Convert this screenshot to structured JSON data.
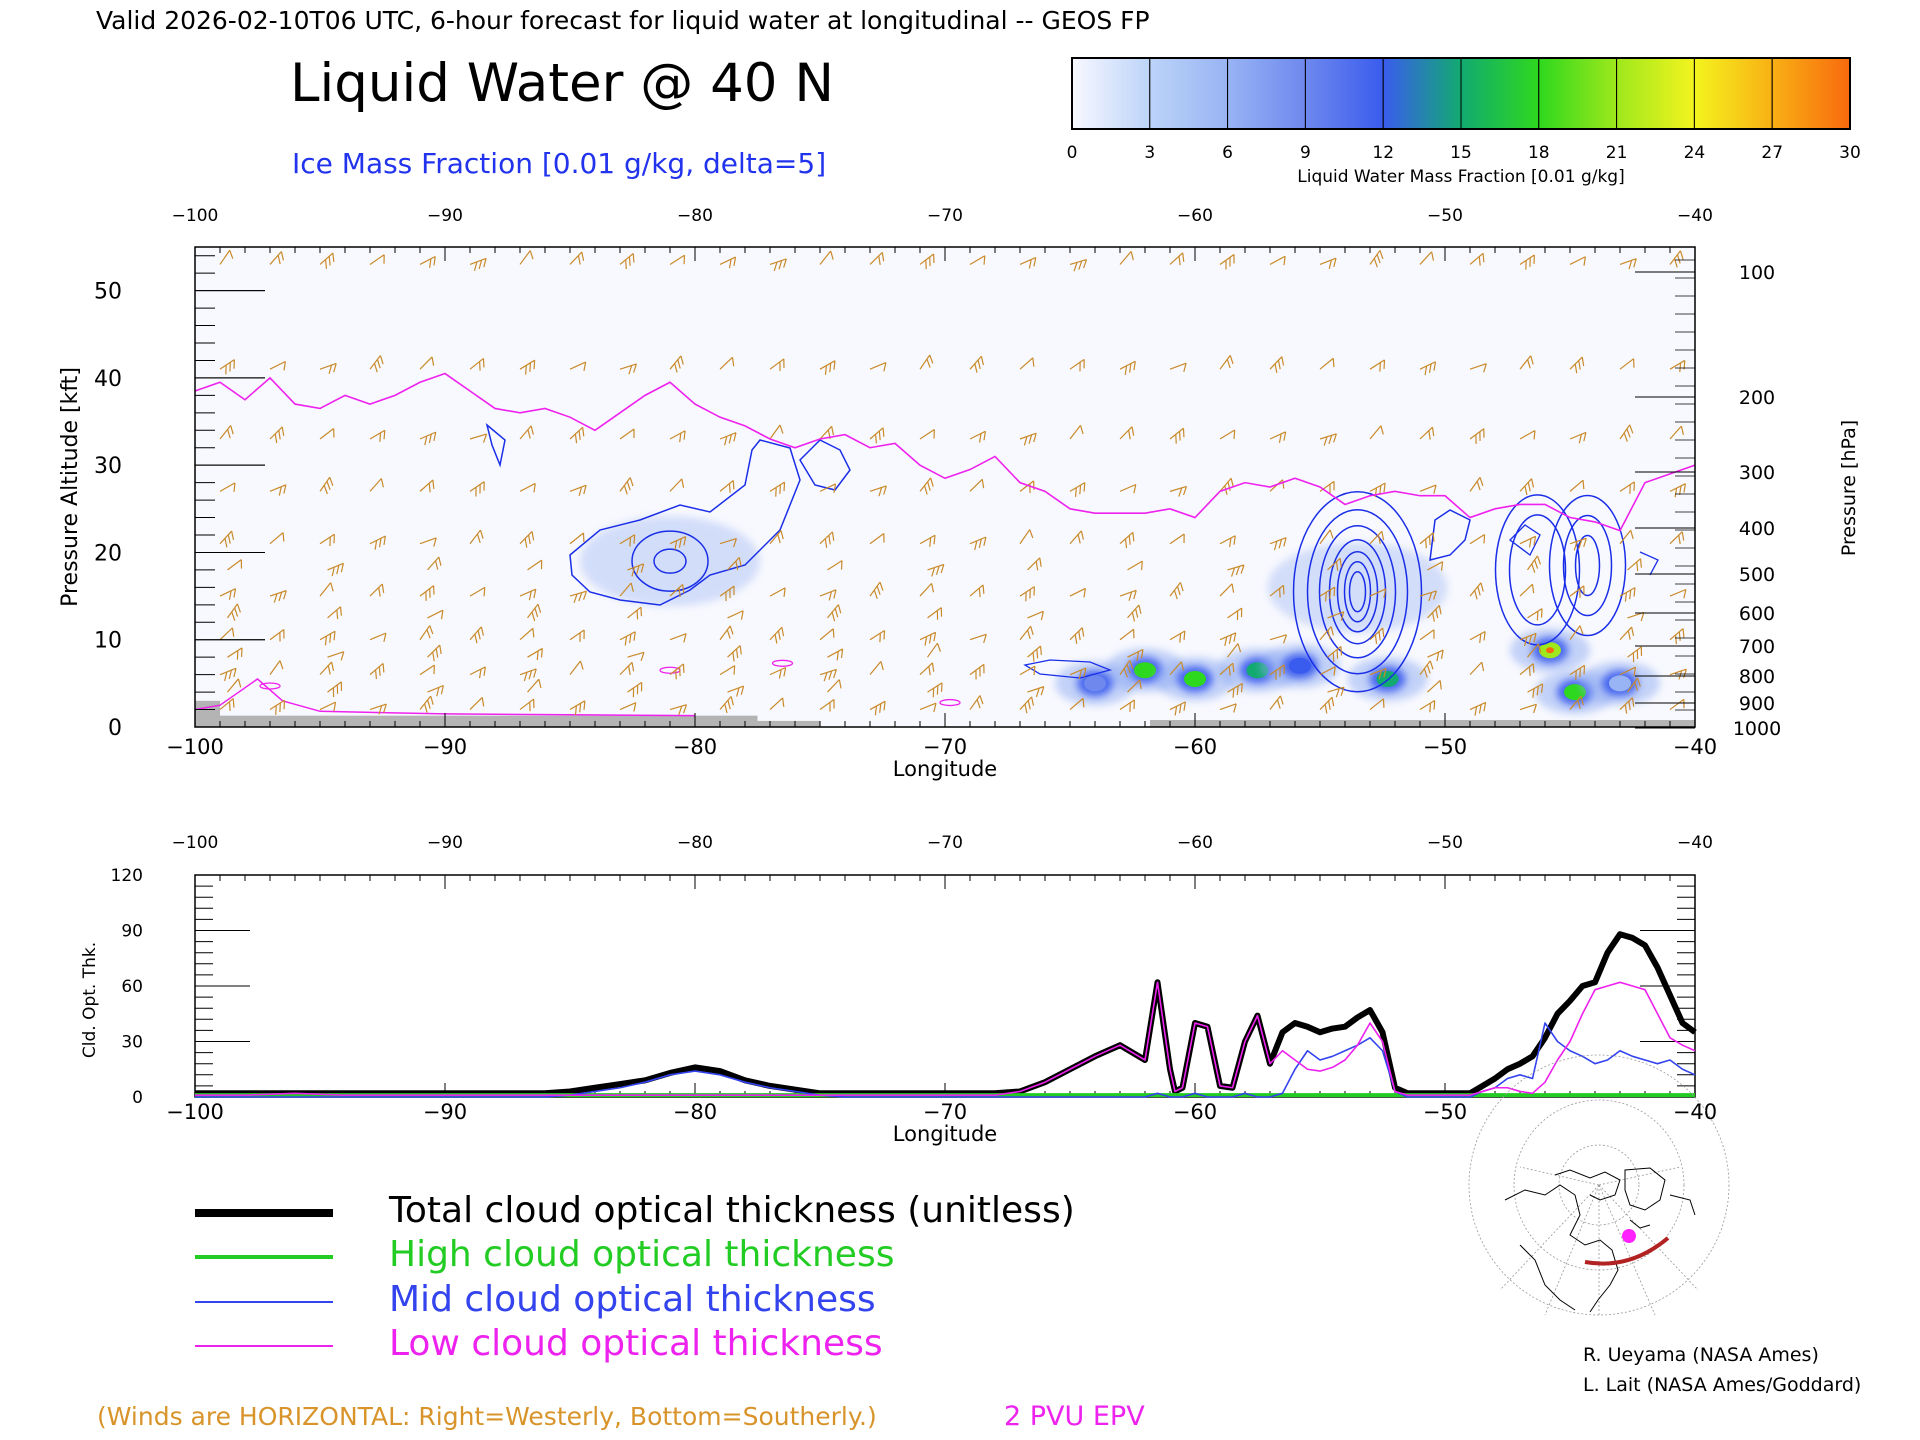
{
  "header": {
    "valid_line": "Valid 2026-02-10T06 UTC, 6-hour forecast for liquid water at longitudinal -- GEOS FP",
    "title": "Liquid Water @ 40 N",
    "ice_label": "Ice Mass Fraction [0.01 g/kg, delta=5]"
  },
  "colorbar": {
    "ticks": [
      "0",
      "3",
      "6",
      "9",
      "12",
      "15",
      "18",
      "21",
      "24",
      "27",
      "30"
    ],
    "title": "Liquid Water Mass Fraction [0.01 g/kg]",
    "colors": [
      "#f8f8ff",
      "#bcd4f8",
      "#98b4f4",
      "#6e88ee",
      "#3a5cee",
      "#12aa70",
      "#2ed81e",
      "#9ee81c",
      "#f4f41e",
      "#f8b014",
      "#f86a0e"
    ]
  },
  "top_panel": {
    "xlabel": "Longitude",
    "x_ticks": [
      "-100",
      "-90",
      "-80",
      "-70",
      "-60",
      "-50",
      "-40"
    ],
    "ylabel_left": "Pressure Altitude [kft]",
    "y_ticks_left": [
      "0",
      "10",
      "20",
      "30",
      "40",
      "50"
    ],
    "ylabel_right": "Pressure [hPa]",
    "y_ticks_right": [
      "100",
      "200",
      "300",
      "400",
      "500",
      "600",
      "700",
      "800",
      "900",
      "1000"
    ]
  },
  "bottom_panel": {
    "xlabel": "Longitude",
    "x_ticks": [
      "-100",
      "-90",
      "-80",
      "-70",
      "-60",
      "-50",
      "-40"
    ],
    "ylabel": "Cld. Opt. Thk.",
    "y_ticks": [
      "0",
      "30",
      "60",
      "90",
      "120"
    ]
  },
  "legend": [
    {
      "label": "Total cloud optical thickness (unitless)",
      "color": "#000000"
    },
    {
      "label": "High cloud optical thickness",
      "color": "#22cc22"
    },
    {
      "label": "Mid cloud optical thickness",
      "color": "#3344ee"
    },
    {
      "label": "Low cloud optical thickness",
      "color": "#ee22ee"
    }
  ],
  "footer": {
    "winds_note": "(Winds are HORIZONTAL: Right=Westerly, Bottom=Southerly.)",
    "pvu_label": "2 PVU EPV",
    "credit1": "R. Ueyama (NASA Ames)",
    "credit2": "L. Lait (NASA Ames/Goddard)"
  },
  "chart_data": [
    {
      "type": "heatmap",
      "title": "Liquid Water @ 40 N",
      "xlabel": "Longitude",
      "ylabel": "Pressure Altitude [kft]",
      "xlim": [
        -100,
        -40
      ],
      "ylim": [
        0,
        55
      ],
      "liquid_water_blobs": [
        {
          "lon": -62,
          "kft": 6.5,
          "value": 18
        },
        {
          "lon": -60,
          "kft": 5.5,
          "value": 19
        },
        {
          "lon": -57.5,
          "kft": 6.5,
          "value": 16
        },
        {
          "lon": -55.8,
          "kft": 7,
          "value": 12
        },
        {
          "lon": -52.3,
          "kft": 5.5,
          "value": 16
        },
        {
          "lon": -45.8,
          "kft": 8.8,
          "value": 22
        },
        {
          "lon": -44.8,
          "kft": 4,
          "value": 17
        },
        {
          "lon": -64,
          "kft": 5,
          "value": 9
        },
        {
          "lon": -81,
          "kft": 19,
          "value": 4
        },
        {
          "lon": -53.5,
          "kft": 16,
          "value": 5
        },
        {
          "lon": -43,
          "kft": 5,
          "value": 7
        }
      ],
      "epv_2pvu_line": {
        "lon": [
          -100,
          -99,
          -98,
          -97,
          -96,
          -95,
          -94,
          -93,
          -92,
          -91,
          -90,
          -89,
          -88,
          -87,
          -86,
          -85,
          -84,
          -83,
          -82,
          -81,
          -80,
          -79,
          -78,
          -77,
          -76,
          -75,
          -74,
          -73,
          -72,
          -71,
          -70,
          -69,
          -68,
          -67,
          -66,
          -65,
          -64,
          -63,
          -62,
          -61,
          -60,
          -59,
          -58,
          -57,
          -56,
          -55,
          -54,
          -53,
          -52,
          -51,
          -50,
          -49,
          -48,
          -47,
          -46,
          -45,
          -44,
          -43,
          -42,
          -41,
          -40
        ],
        "kft": [
          38.5,
          39.5,
          37.5,
          40,
          37,
          36.5,
          38,
          37,
          38,
          39.5,
          40.5,
          38.5,
          36.5,
          36,
          36.5,
          35.5,
          34,
          36,
          38,
          39.5,
          37,
          35.5,
          34.5,
          33,
          32,
          33,
          33.5,
          32,
          32.5,
          30,
          28.5,
          29.5,
          31,
          28,
          27,
          25,
          24.5,
          24.5,
          24.5,
          25,
          24,
          27,
          28,
          27.5,
          28.5,
          27.5,
          25.5,
          26.5,
          27,
          26.5,
          26.5,
          24,
          25,
          25.5,
          25.5,
          24,
          23.5,
          22.5,
          28,
          29,
          30
        ]
      }
    },
    {
      "type": "line",
      "xlabel": "Longitude",
      "ylabel": "Cld. Opt. Thk.",
      "xlim": [
        -100,
        -40
      ],
      "ylim": [
        0,
        120
      ],
      "x": [
        -100,
        -98,
        -96,
        -94,
        -92,
        -90,
        -88,
        -86,
        -85,
        -84,
        -83,
        -82,
        -81,
        -80,
        -79,
        -78,
        -77,
        -76,
        -75,
        -74,
        -72,
        -70,
        -68,
        -67,
        -66,
        -65,
        -64,
        -63,
        -62,
        -61.5,
        -61,
        -60.8,
        -60.5,
        -60,
        -59.5,
        -59,
        -58.5,
        -58,
        -57.5,
        -57,
        -56.5,
        -56,
        -55.5,
        -55,
        -54.5,
        -54,
        -53.5,
        -53,
        -52.5,
        -52,
        -51.5,
        -51,
        -50.5,
        -50,
        -49.5,
        -49,
        -48.5,
        -48,
        -47.5,
        -47,
        -46.5,
        -46,
        -45.5,
        -45,
        -44.5,
        -44,
        -43.5,
        -43,
        -42.5,
        -42,
        -41.5,
        -41,
        -40.5,
        -40
      ],
      "series": [
        {
          "name": "Total cloud optical thickness (unitless)",
          "values": [
            2,
            2,
            2,
            2,
            2,
            2,
            2,
            2,
            3,
            5,
            7,
            9,
            13,
            16,
            14,
            9,
            6,
            4,
            2,
            2,
            2,
            2,
            2,
            3,
            8,
            15,
            22,
            28,
            20,
            62,
            15,
            3,
            5,
            40,
            38,
            6,
            5,
            30,
            44,
            18,
            35,
            40,
            38,
            35,
            37,
            38,
            43,
            47,
            35,
            5,
            2,
            2,
            2,
            2,
            2,
            2,
            6,
            10,
            15,
            18,
            22,
            32,
            45,
            52,
            60,
            62,
            78,
            88,
            86,
            82,
            70,
            55,
            40,
            35
          ]
        },
        {
          "name": "High cloud optical thickness",
          "values": [
            1,
            1,
            1,
            1,
            1,
            1,
            1,
            1,
            1,
            1,
            1,
            1,
            1,
            1,
            1,
            1,
            1,
            1,
            1,
            1,
            1,
            1,
            1,
            1,
            1,
            1,
            1,
            1,
            1,
            1,
            1,
            1,
            1,
            1,
            1,
            1,
            1,
            1,
            1,
            1,
            1,
            1,
            1,
            1,
            1,
            1,
            1,
            1,
            1,
            1,
            1,
            1,
            1,
            1,
            1,
            1,
            1,
            1,
            1,
            1,
            1,
            1,
            1,
            1,
            1,
            1,
            1,
            1,
            1,
            1,
            1,
            1,
            1,
            1
          ]
        },
        {
          "name": "Mid cloud optical thickness",
          "values": [
            0,
            0,
            0,
            0,
            0,
            0,
            0,
            0,
            1,
            3,
            5,
            8,
            12,
            14,
            12,
            8,
            5,
            3,
            1,
            0,
            0,
            0,
            0,
            0,
            0,
            0,
            0,
            0,
            0,
            2,
            0,
            0,
            0,
            2,
            0,
            0,
            0,
            2,
            0,
            0,
            2,
            15,
            25,
            20,
            22,
            25,
            28,
            32,
            25,
            3,
            0,
            0,
            0,
            0,
            0,
            0,
            3,
            5,
            10,
            12,
            10,
            40,
            30,
            25,
            22,
            18,
            20,
            25,
            22,
            20,
            18,
            20,
            15,
            12
          ]
        },
        {
          "name": "Low cloud optical thickness",
          "values": [
            1,
            1,
            2,
            1,
            1,
            1,
            1,
            1,
            1,
            1,
            1,
            1,
            1,
            1,
            1,
            1,
            1,
            1,
            1,
            1,
            1,
            1,
            1,
            3,
            8,
            15,
            22,
            28,
            20,
            62,
            15,
            3,
            5,
            40,
            38,
            6,
            5,
            30,
            44,
            18,
            25,
            20,
            15,
            14,
            16,
            20,
            28,
            40,
            30,
            3,
            1,
            1,
            1,
            1,
            1,
            1,
            3,
            5,
            5,
            3,
            2,
            8,
            20,
            30,
            45,
            58,
            60,
            62,
            60,
            58,
            45,
            32,
            28,
            25
          ]
        }
      ]
    }
  ]
}
